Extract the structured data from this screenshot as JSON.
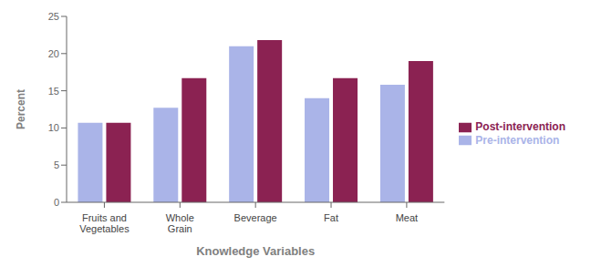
{
  "chart_data": {
    "type": "bar",
    "categories": [
      "Fruits and\nVegetables",
      "Whole\nGrain",
      "Beverage",
      "Fat",
      "Meat"
    ],
    "series": [
      {
        "name": "Pre-intervention",
        "color": "#aab4e8",
        "values": [
          10.7,
          12.7,
          21.0,
          14.0,
          15.8
        ]
      },
      {
        "name": "Post-intervention",
        "color": "#8B2252",
        "values": [
          10.7,
          16.7,
          21.8,
          16.7,
          19.0
        ]
      }
    ],
    "xlabel": "Knowledge Variables",
    "ylabel": "Percent",
    "ylim": [
      0,
      25
    ],
    "yticks": [
      0,
      5,
      10,
      15,
      20,
      25
    ],
    "grid": false,
    "legend": "right"
  }
}
